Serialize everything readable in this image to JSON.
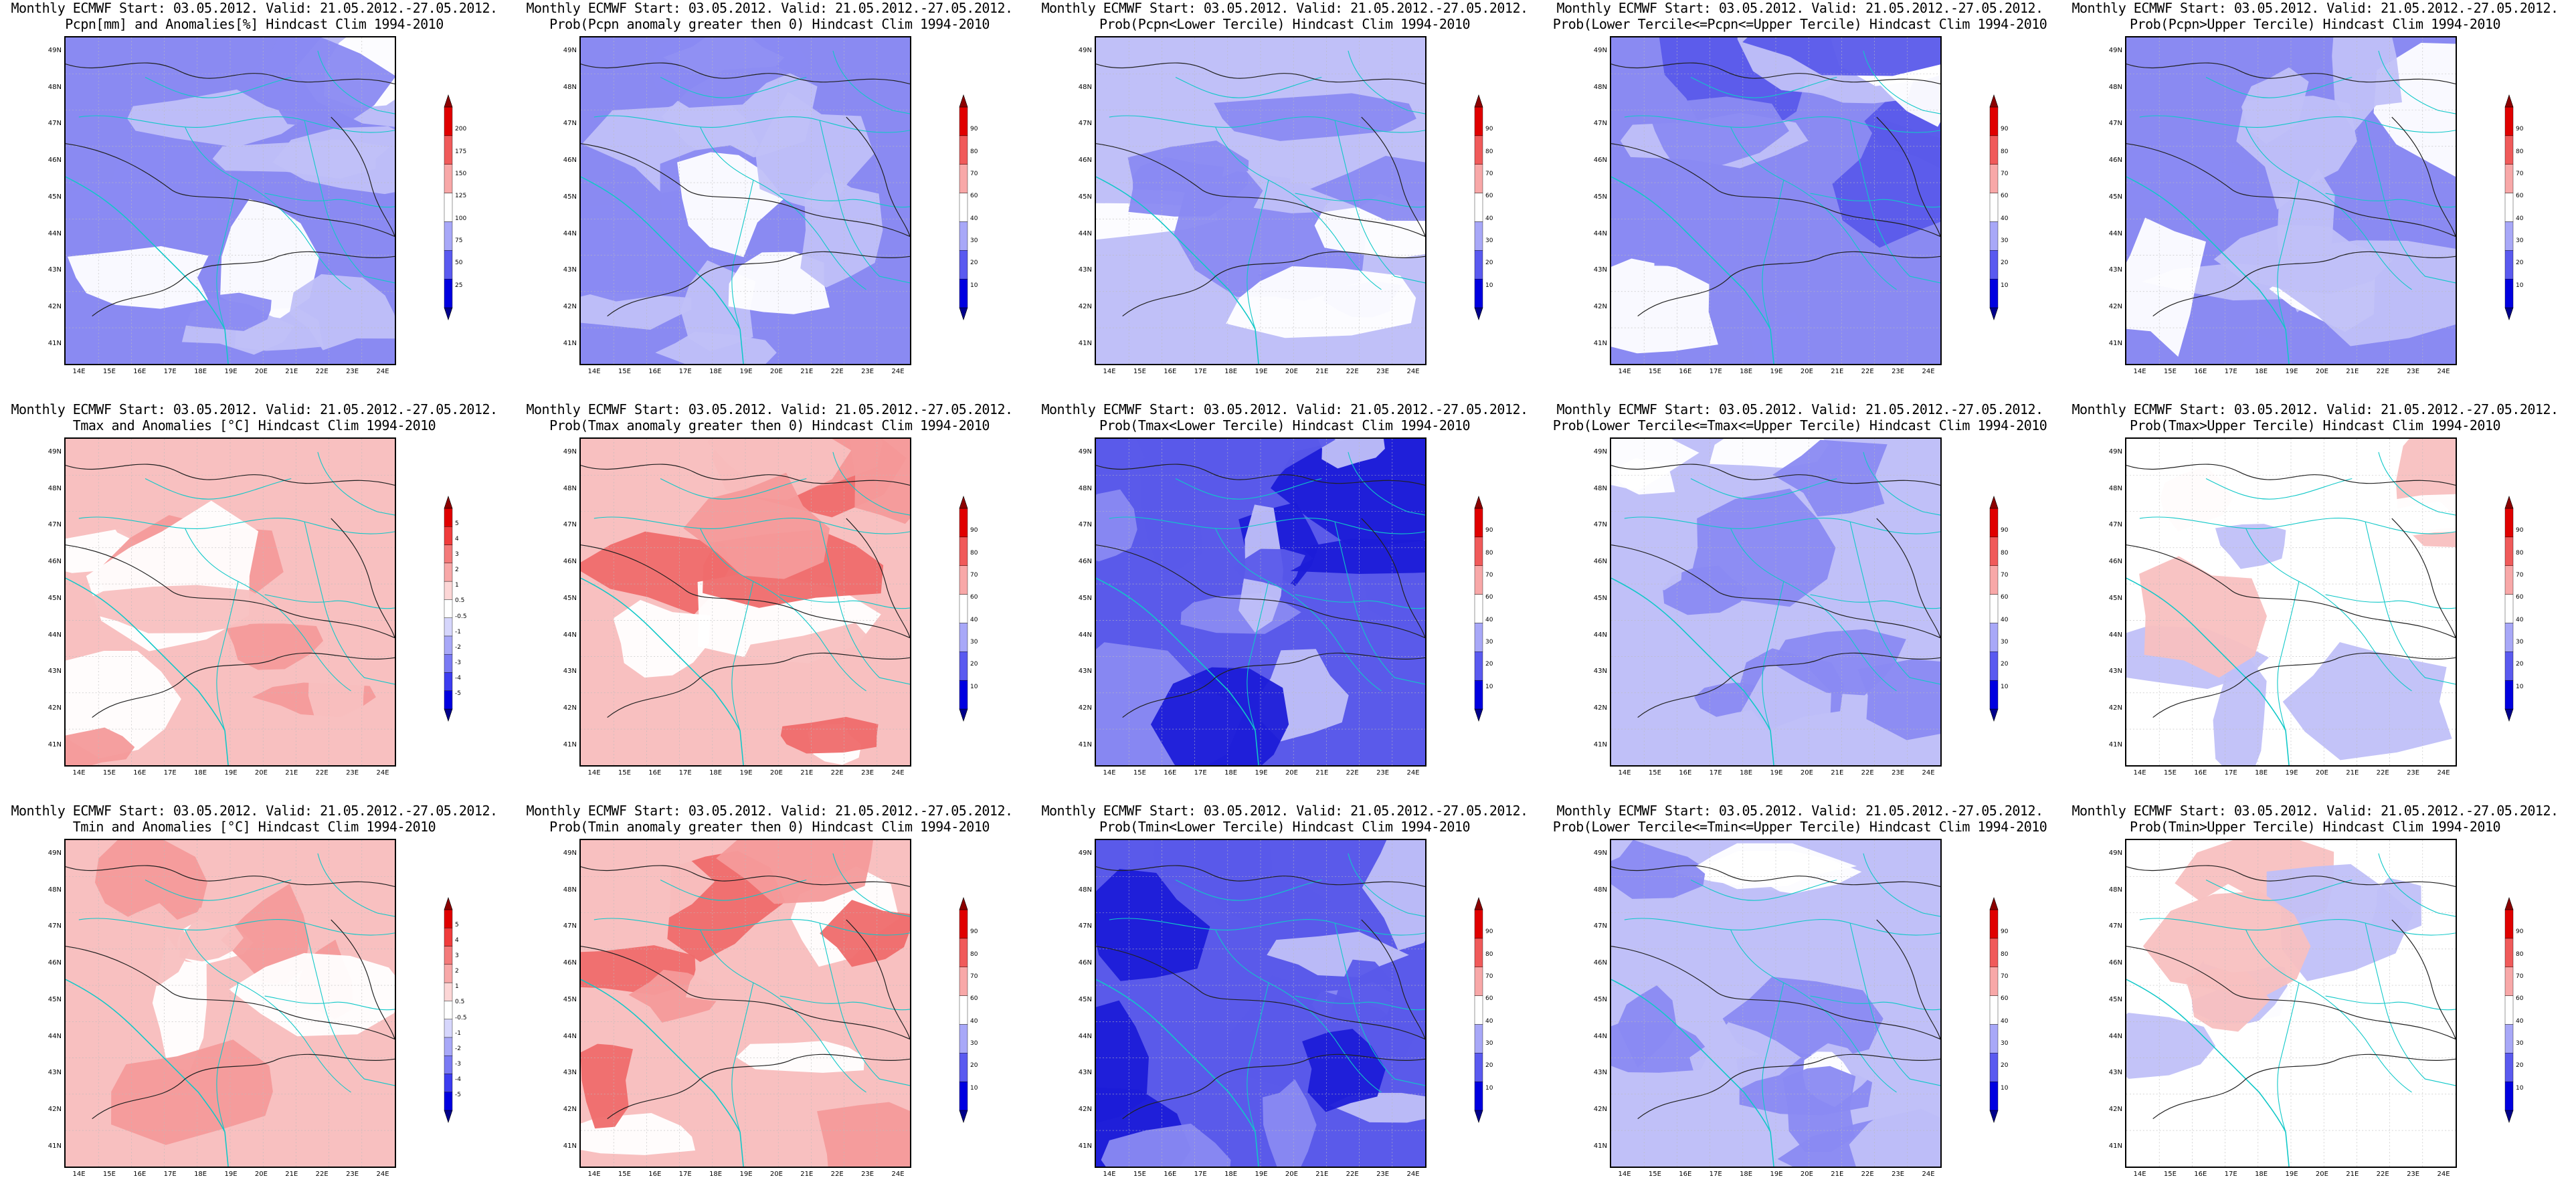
{
  "panels": [
    {
      "line1": "Monthly ECMWF Start: 03.05.2012. Valid: 21.05.2012.-27.05.2012.",
      "line2": "Pcpn[mm] and Anomalies[%] Hindcast Clim 1994-2010",
      "kind": "pcp",
      "legend": [
        "25",
        "50",
        "75",
        "100",
        "125",
        "150",
        "175",
        "200"
      ]
    },
    {
      "line1": "Monthly ECMWF Start: 03.05.2012. Valid: 21.05.2012.-27.05.2012.",
      "line2": "Prob(Pcpn anomaly greater then 0) Hindcast Clim 1994-2010",
      "kind": "pcp",
      "legend": [
        "10",
        "20",
        "30",
        "40",
        "60",
        "70",
        "80",
        "90"
      ]
    },
    {
      "line1": "Monthly ECMWF Start: 03.05.2012. Valid: 21.05.2012.-27.05.2012.",
      "line2": "Prob(Pcpn<Lower Tercile) Hindcast Clim 1994-2010",
      "kind": "blue-mid",
      "legend": [
        "10",
        "20",
        "30",
        "40",
        "60",
        "70",
        "80",
        "90"
      ]
    },
    {
      "line1": "Monthly ECMWF Start: 03.05.2012. Valid: 21.05.2012.-27.05.2012.",
      "line2": "Prob(Lower Tercile<=Pcpn<=Upper Tercile) Hindcast Clim 1994-2010",
      "kind": "blue-strong",
      "legend": [
        "10",
        "20",
        "30",
        "40",
        "60",
        "70",
        "80",
        "90"
      ]
    },
    {
      "line1": "Monthly ECMWF Start: 03.05.2012. Valid: 21.05.2012.-27.05.2012.",
      "line2": "Prob(Pcpn>Upper Tercile) Hindcast Clim 1994-2010",
      "kind": "pcp",
      "legend": [
        "10",
        "20",
        "30",
        "40",
        "60",
        "70",
        "80",
        "90"
      ]
    },
    {
      "line1": "Monthly ECMWF Start: 03.05.2012. Valid: 21.05.2012.-27.05.2012.",
      "line2": "Tmax and Anomalies [°C] Hindcast Clim 1994-2010",
      "kind": "red",
      "legend": [
        "-5",
        "-4",
        "-3",
        "-2",
        "-1",
        "-0.5",
        "0.5",
        "1",
        "2",
        "3",
        "4",
        "5"
      ]
    },
    {
      "line1": "Monthly ECMWF Start: 03.05.2012. Valid: 21.05.2012.-27.05.2012.",
      "line2": "Prob(Tmax anomaly greater then 0) Hindcast Clim 1994-2010",
      "kind": "red-strong",
      "legend": [
        "10",
        "20",
        "30",
        "40",
        "60",
        "70",
        "80",
        "90"
      ]
    },
    {
      "line1": "Monthly ECMWF Start: 03.05.2012. Valid: 21.05.2012.-27.05.2012.",
      "line2": "Prob(Tmax<Lower Tercile) Hindcast Clim 1994-2010",
      "kind": "blue-deep",
      "legend": [
        "10",
        "20",
        "30",
        "40",
        "60",
        "70",
        "80",
        "90"
      ]
    },
    {
      "line1": "Monthly ECMWF Start: 03.05.2012. Valid: 21.05.2012.-27.05.2012.",
      "line2": "Prob(Lower Tercile<=Tmax<=Upper Tercile) Hindcast Clim 1994-2010",
      "kind": "blue-mid",
      "legend": [
        "10",
        "20",
        "30",
        "40",
        "60",
        "70",
        "80",
        "90"
      ]
    },
    {
      "line1": "Monthly ECMWF Start: 03.05.2012. Valid: 21.05.2012.-27.05.2012.",
      "line2": "Prob(Tmax>Upper Tercile) Hindcast Clim 1994-2010",
      "kind": "light",
      "legend": [
        "10",
        "20",
        "30",
        "40",
        "60",
        "70",
        "80",
        "90"
      ]
    },
    {
      "line1": "Monthly ECMWF Start: 03.05.2012. Valid: 21.05.2012.-27.05.2012.",
      "line2": "Tmin and Anomalies [°C] Hindcast Clim 1994-2010",
      "kind": "red",
      "legend": [
        "-5",
        "-4",
        "-3",
        "-2",
        "-1",
        "-0.5",
        "0.5",
        "1",
        "2",
        "3",
        "4",
        "5"
      ]
    },
    {
      "line1": "Monthly ECMWF Start: 03.05.2012. Valid: 21.05.2012.-27.05.2012.",
      "line2": "Prob(Tmin anomaly greater then 0) Hindcast Clim 1994-2010",
      "kind": "red-strong",
      "legend": [
        "10",
        "20",
        "30",
        "40",
        "60",
        "70",
        "80",
        "90"
      ]
    },
    {
      "line1": "Monthly ECMWF Start: 03.05.2012. Valid: 21.05.2012.-27.05.2012.",
      "line2": "Prob(Tmin<Lower Tercile) Hindcast Clim 1994-2010",
      "kind": "blue-deep",
      "legend": [
        "10",
        "20",
        "30",
        "40",
        "60",
        "70",
        "80",
        "90"
      ]
    },
    {
      "line1": "Monthly ECMWF Start: 03.05.2012. Valid: 21.05.2012.-27.05.2012.",
      "line2": "Prob(Lower Tercile<=Tmin<=Upper Tercile) Hindcast Clim 1994-2010",
      "kind": "blue-mid",
      "legend": [
        "10",
        "20",
        "30",
        "40",
        "60",
        "70",
        "80",
        "90"
      ]
    },
    {
      "line1": "Monthly ECMWF Start: 03.05.2012. Valid: 21.05.2012.-27.05.2012.",
      "line2": "Prob(Tmin>Upper Tercile) Hindcast Clim 1994-2010",
      "kind": "light",
      "legend": [
        "10",
        "20",
        "30",
        "40",
        "60",
        "70",
        "80",
        "90"
      ]
    }
  ],
  "lat_labels": [
    "49N",
    "48N",
    "47N",
    "46N",
    "45N",
    "44N",
    "43N",
    "42N",
    "41N"
  ],
  "lon_labels": [
    "14E",
    "15E",
    "16E",
    "17E",
    "18E",
    "19E",
    "20E",
    "21E",
    "22E",
    "23E",
    "24E"
  ],
  "colors": {
    "dblue": "#1c1cd8",
    "blue": "#5a5aea",
    "mblue": "#8a8af2",
    "lblue": "#c0c0f8",
    "lred": "#f8c0c0",
    "mred": "#f49a9a",
    "red": "#ef6b6b",
    "dred": "#c81010",
    "cyan": "#10c8c8",
    "contour": "#202020"
  }
}
